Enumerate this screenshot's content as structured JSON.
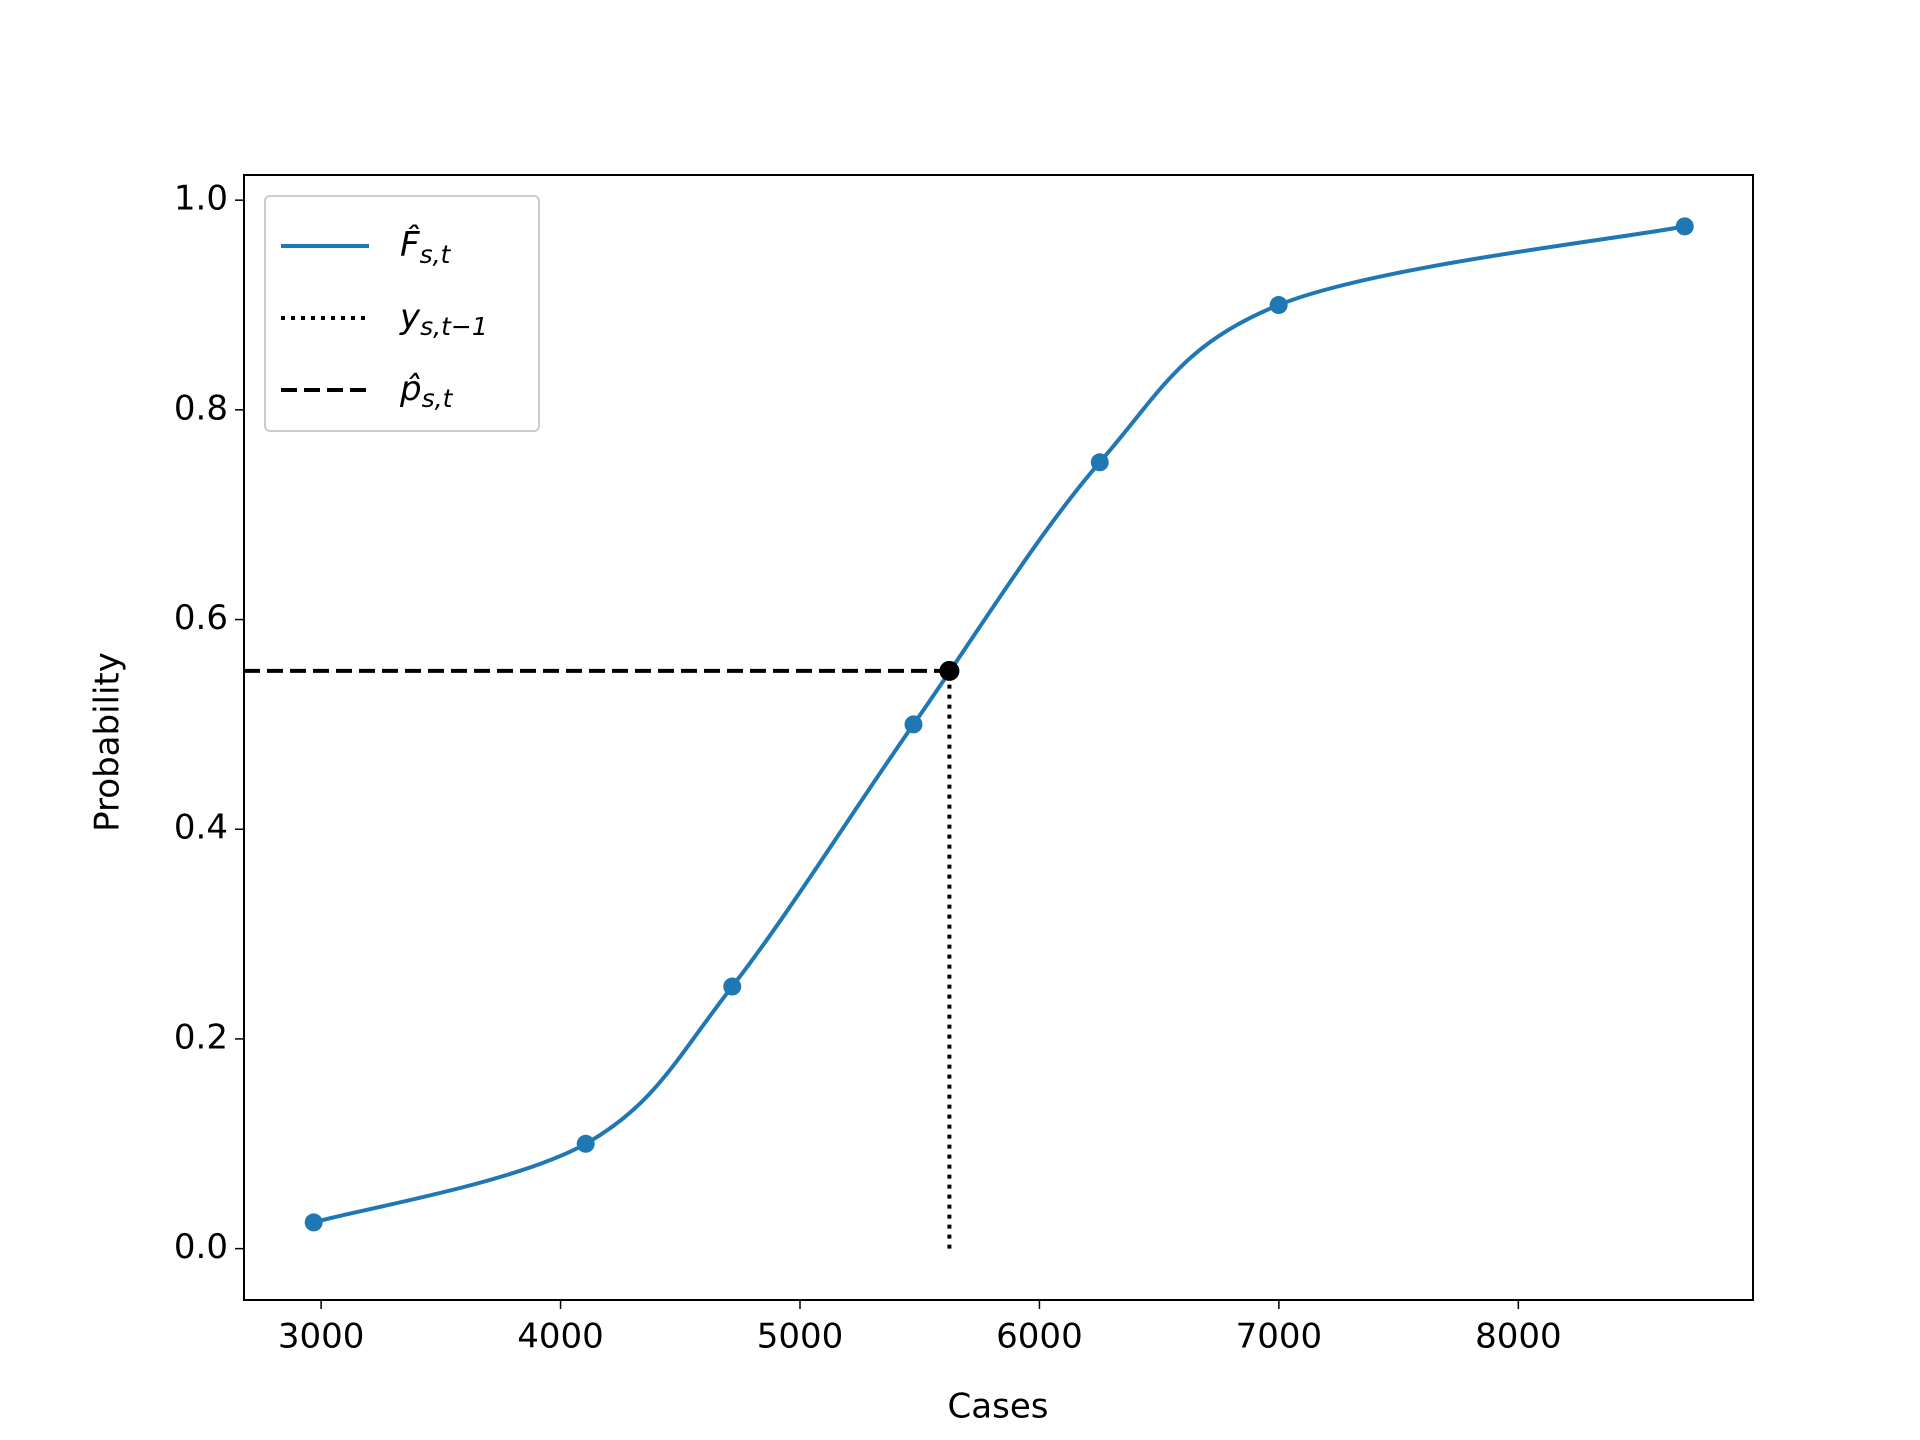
{
  "chart_data": {
    "type": "line",
    "xlabel": "Cases",
    "ylabel": "Probability",
    "xlim": [
      2678,
      8980
    ],
    "ylim": [
      -0.049,
      1.024
    ],
    "xticks": [
      3000,
      4000,
      5000,
      6000,
      7000,
      8000
    ],
    "yticks": [
      {
        "value": 0,
        "label": "0.0"
      },
      {
        "value": 0.2,
        "label": "0.2"
      },
      {
        "value": 0.4,
        "label": "0.4"
      },
      {
        "value": 0.6,
        "label": "0.6"
      },
      {
        "value": 0.8,
        "label": "0.8"
      },
      {
        "value": 1,
        "label": "1.0"
      }
    ],
    "legend": "upper left",
    "series": [
      {
        "name": "F̂",
        "subscript": "s,t",
        "style": "solid",
        "markers": true,
        "color": "#1f77b4",
        "x": [
          2969,
          4105,
          4717,
          5474,
          6252,
          6999,
          8695
        ],
        "values": [
          0.025,
          0.1,
          0.25,
          0.5,
          0.75,
          0.9,
          0.975
        ]
      },
      {
        "name": "y",
        "subscript": "s,t−1",
        "style": "dotted",
        "markers": false,
        "color": "#000000",
        "x": [
          5624,
          5624
        ],
        "values": [
          0,
          0.551
        ]
      },
      {
        "name": "p̂",
        "subscript": "s,t",
        "style": "dashed",
        "markers": false,
        "color": "#000000",
        "x": [
          2678,
          5624
        ],
        "values": [
          0.551,
          0.551
        ]
      }
    ],
    "point": {
      "x": 5624,
      "y": 0.551,
      "color": "#000000"
    }
  }
}
